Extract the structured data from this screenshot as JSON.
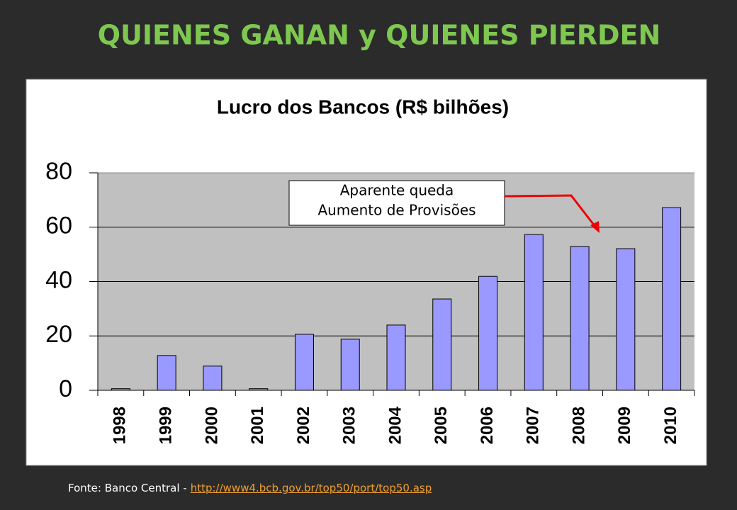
{
  "slide_title": "QUIENES GANAN y QUIENES PIERDEN",
  "chart_data": {
    "type": "bar",
    "title": "Lucro dos Bancos (R$ bilhões)",
    "categories": [
      "1998",
      "1999",
      "2000",
      "2001",
      "2002",
      "2003",
      "2004",
      "2005",
      "2006",
      "2007",
      "2008",
      "2009",
      "2010"
    ],
    "values": [
      0.6,
      12.8,
      8.9,
      0.6,
      20.6,
      18.8,
      24.0,
      33.6,
      41.9,
      57.3,
      52.9,
      52.1,
      67.2
    ],
    "color": "#9999ff",
    "ylim": [
      0,
      80
    ],
    "yticks": [
      0,
      20,
      40,
      60,
      80
    ],
    "grid": true,
    "annotation": [
      "Aparente queda",
      "Aumento de Provisões"
    ]
  },
  "footer": {
    "text": "Fonte: Banco Central -",
    "link": "http://www4.bcb.gov.br/top50/port/top50.asp"
  }
}
